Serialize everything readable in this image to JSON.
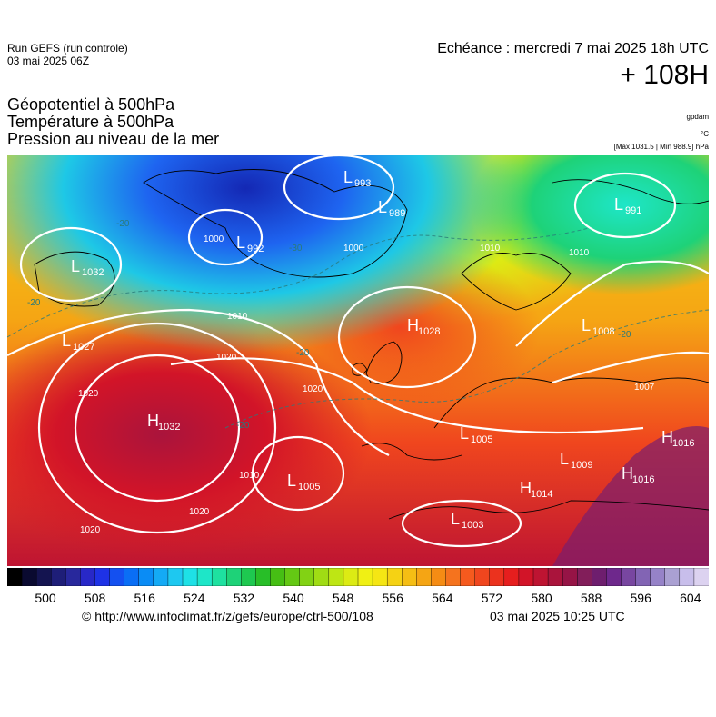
{
  "header": {
    "run_line1": "Run GEFS (run controle)",
    "run_line2": "03 mai 2025 06Z",
    "echeance": "Echéance : mercredi 7 mai 2025 18h UTC",
    "hour": "+ 108H"
  },
  "layers": [
    "Géopotentiel à 500hPa",
    "Température à 500hPa",
    "Pression au niveau de la mer"
  ],
  "units": {
    "geopotential": "gpdam",
    "temperature": "°C",
    "pressure": "[Max 1031.5 | Min 988.9] hPa"
  },
  "pressure_centers": [
    {
      "type": "L",
      "value": "993"
    },
    {
      "type": "L",
      "value": "989"
    },
    {
      "type": "L",
      "value": "992"
    },
    {
      "type": "L",
      "value": "1032"
    },
    {
      "type": "L",
      "value": "1027"
    },
    {
      "type": "L",
      "value": "991"
    },
    {
      "type": "H",
      "value": "1028"
    },
    {
      "type": "L",
      "value": "1008"
    },
    {
      "type": "H",
      "value": "1032"
    },
    {
      "type": "L",
      "value": "1005"
    },
    {
      "type": "L",
      "value": "1005"
    },
    {
      "type": "L",
      "value": "1009"
    },
    {
      "type": "H",
      "value": "1016"
    },
    {
      "type": "H",
      "value": "1016"
    },
    {
      "type": "H",
      "value": "1014"
    },
    {
      "type": "L",
      "value": "1003"
    }
  ],
  "isobar_labels": [
    "1000",
    "1000",
    "1010",
    "1020",
    "1020",
    "1020",
    "1020",
    "1020",
    "1010",
    "1010",
    "1010",
    "1007"
  ],
  "temperature_labels": [
    "-20",
    "-20",
    "-30",
    "-20",
    "-20",
    "-20"
  ],
  "colorbar": {
    "colors": [
      "#000000",
      "#0a0a30",
      "#141450",
      "#1e1e78",
      "#28289c",
      "#2828c8",
      "#1e32e6",
      "#1450f0",
      "#0a6ef5",
      "#0a8cf5",
      "#14aaf5",
      "#1ec8f0",
      "#1ee1e6",
      "#1ee6c8",
      "#1ee1a0",
      "#1ed278",
      "#1ec850",
      "#28be28",
      "#46be14",
      "#64c814",
      "#82d214",
      "#a0dc14",
      "#bee614",
      "#dceb14",
      "#f0f014",
      "#f5e614",
      "#f5d214",
      "#f5be14",
      "#f5a514",
      "#f58c14",
      "#f5731e",
      "#f55a1e",
      "#f0461e",
      "#eb321e",
      "#e61e1e",
      "#d21428",
      "#be1432",
      "#aa143c",
      "#961446",
      "#821e5a",
      "#6e1e6e",
      "#6e288c",
      "#7846a0",
      "#8264b4",
      "#9682c8",
      "#aaa0d2",
      "#c8beeb",
      "#dcd2f0"
    ],
    "ticks": [
      "500",
      "508",
      "516",
      "524",
      "532",
      "540",
      "548",
      "556",
      "564",
      "572",
      "580",
      "588",
      "596",
      "604"
    ]
  },
  "footer": {
    "url": "© http://www.infoclimat.fr/z/gefs/europe/ctrl-500/108",
    "date": "03 mai 2025 10:25 UTC"
  }
}
